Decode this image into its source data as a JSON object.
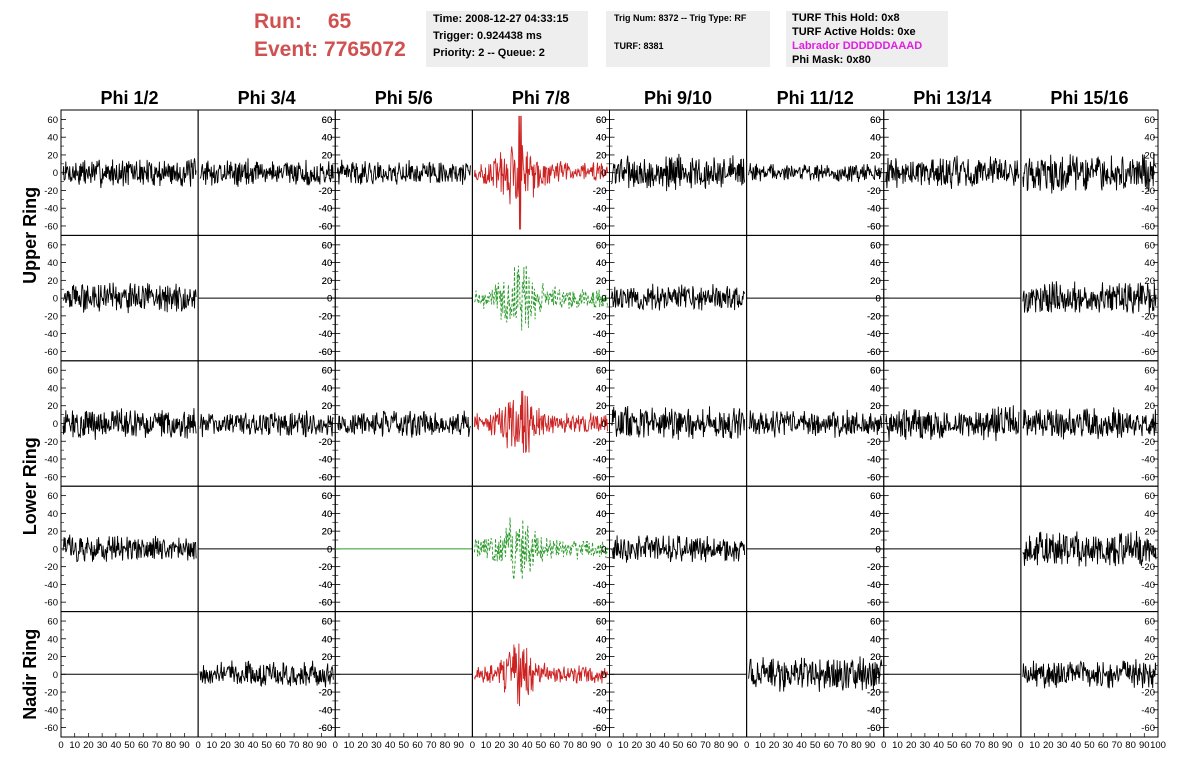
{
  "header": {
    "run_label": "Run:",
    "run_value": "65",
    "event_label": "Event:",
    "event_value": "7765072"
  },
  "time_box": {
    "time": "Time: 2008-12-27 04:33:15",
    "trigger": "Trigger: 0.924438 ms",
    "priority": "Priority: 2 -- Queue: 2"
  },
  "trig_box": {
    "trig": "Trig Num: 8372 -- Trig Type: RF",
    "turf": "TURF: 8381"
  },
  "turf_box": {
    "this_hold": "TURF This Hold: 0x8",
    "active_holds": "TURF Active Holds: 0xe",
    "labrador": "Labrador DDDDDDAAAD",
    "phi_mask": "Phi Mask: 0x80"
  },
  "colors": {
    "trace": "#000000",
    "triggered_trace": "#cc2222",
    "dashed_trace": "#2a9a2a",
    "labrador": "#e020e0",
    "run_text": "#d05050",
    "info_box_bg": "#eeeeee"
  },
  "chart_data": {
    "type": "line",
    "column_labels": [
      "Phi 1/2",
      "Phi 3/4",
      "Phi 5/6",
      "Phi 7/8",
      "Phi 9/10",
      "Phi 11/12",
      "Phi 13/14",
      "Phi 15/16"
    ],
    "row_labels": [
      "Upper Ring",
      "Lower Ring",
      "Nadir Ring"
    ],
    "ylim": [
      -65,
      65
    ],
    "y_ticks": [
      "-60",
      "-40",
      "-20",
      "0",
      "20",
      "40",
      "60"
    ],
    "xlim": [
      0,
      100
    ],
    "x_tick_labels": [
      "0",
      "10",
      "20",
      "30",
      "40",
      "50",
      "60",
      "70",
      "80",
      "90",
      "100"
    ],
    "series_styles": {
      "normal": "solid black",
      "triggered": "solid red",
      "other_pol": "dashed green",
      "flat": "flat line at 0"
    },
    "panels": [
      [
        "normal",
        "normal",
        "normal",
        "triggered",
        "normal",
        "normal",
        "normal",
        "normal"
      ],
      [
        "normal",
        "flat",
        "flat",
        "other_pol",
        "normal",
        "flat",
        "flat",
        "normal"
      ],
      [
        "normal",
        "normal",
        "normal",
        "triggered",
        "normal",
        "normal",
        "normal",
        "normal"
      ],
      [
        "normal",
        "flat",
        "flat_green",
        "other_pol",
        "normal",
        "flat",
        "flat",
        "normal"
      ],
      [
        "flat",
        "normal",
        "flat",
        "triggered",
        "flat",
        "normal",
        "flat",
        "normal"
      ]
    ],
    "amplitudes": [
      [
        13,
        12,
        11,
        22,
        16,
        8,
        14,
        17
      ],
      [
        13,
        0,
        0,
        22,
        12,
        0,
        0,
        15
      ],
      [
        14,
        11,
        12,
        20,
        15,
        12,
        15,
        14
      ],
      [
        12,
        0,
        0,
        20,
        12,
        0,
        0,
        16
      ],
      [
        0,
        12,
        0,
        18,
        0,
        15,
        0,
        13
      ]
    ]
  }
}
